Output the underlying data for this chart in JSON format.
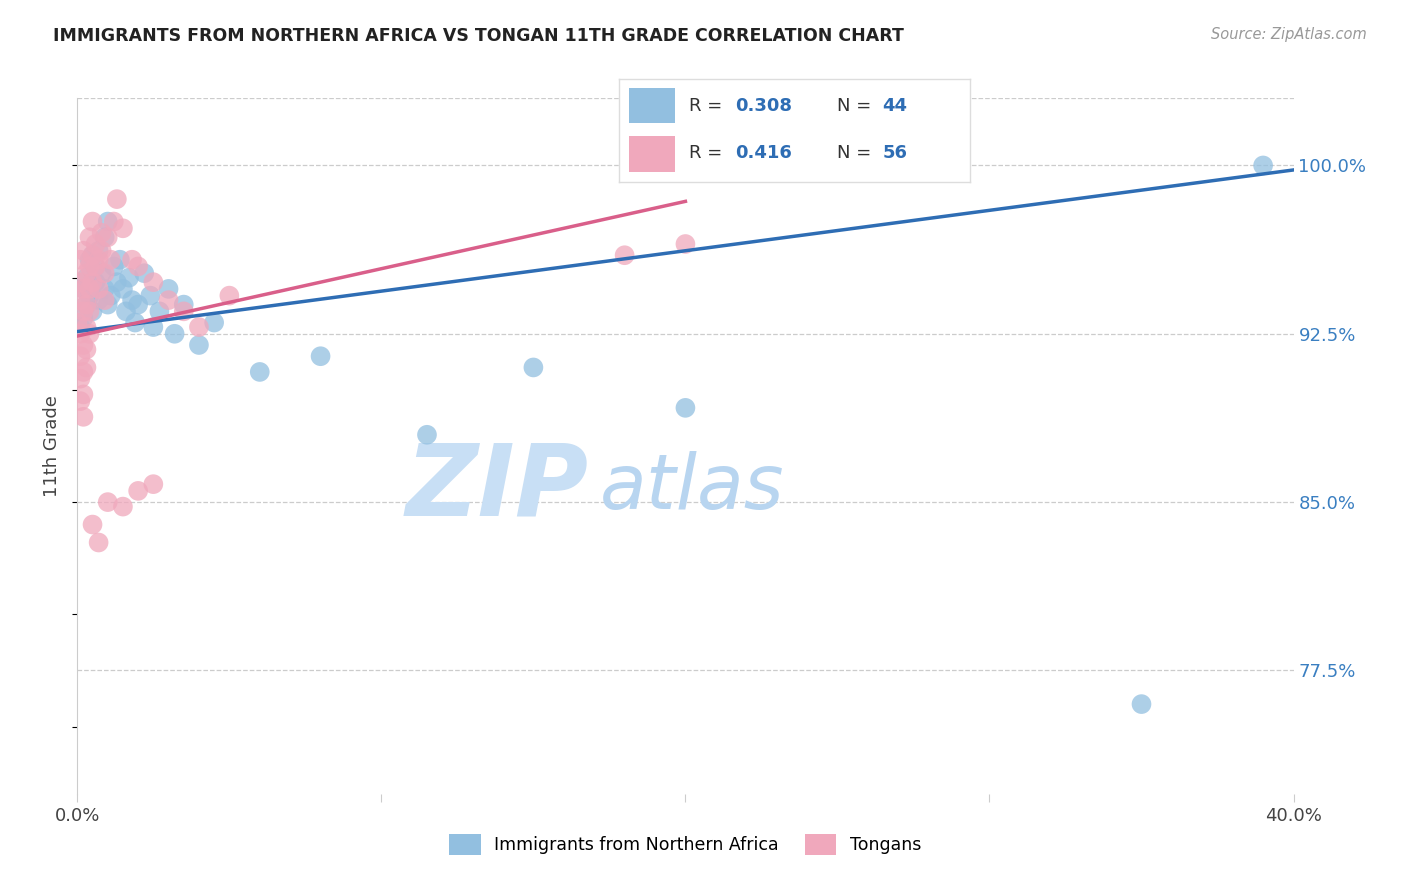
{
  "title": "IMMIGRANTS FROM NORTHERN AFRICA VS TONGAN 11TH GRADE CORRELATION CHART",
  "source": "Source: ZipAtlas.com",
  "ylabel": "11th Grade",
  "ytick_labels": [
    "77.5%",
    "85.0%",
    "92.5%",
    "100.0%"
  ],
  "ytick_values": [
    0.775,
    0.85,
    0.925,
    1.0
  ],
  "xlim": [
    0.0,
    0.4
  ],
  "ylim": [
    0.72,
    1.03
  ],
  "watermark_zip": "ZIP",
  "watermark_atlas": "atlas",
  "legend_label_blue": "Immigrants from Northern Africa",
  "legend_label_pink": "Tongans",
  "blue_color": "#92bfe0",
  "pink_color": "#f0a8bc",
  "blue_line_color": "#2e6db4",
  "pink_line_color": "#d95f8a",
  "legend_R_blue": "0.308",
  "legend_N_blue": "44",
  "legend_R_pink": "0.416",
  "legend_N_pink": "56",
  "blue_scatter": [
    [
      0.001,
      0.928
    ],
    [
      0.002,
      0.932
    ],
    [
      0.002,
      0.945
    ],
    [
      0.003,
      0.95
    ],
    [
      0.003,
      0.938
    ],
    [
      0.004,
      0.958
    ],
    [
      0.004,
      0.942
    ],
    [
      0.005,
      0.935
    ],
    [
      0.005,
      0.96
    ],
    [
      0.006,
      0.948
    ],
    [
      0.006,
      0.955
    ],
    [
      0.007,
      0.962
    ],
    [
      0.007,
      0.94
    ],
    [
      0.008,
      0.952
    ],
    [
      0.009,
      0.945
    ],
    [
      0.009,
      0.968
    ],
    [
      0.01,
      0.938
    ],
    [
      0.01,
      0.975
    ],
    [
      0.011,
      0.942
    ],
    [
      0.012,
      0.955
    ],
    [
      0.013,
      0.948
    ],
    [
      0.014,
      0.958
    ],
    [
      0.015,
      0.945
    ],
    [
      0.016,
      0.935
    ],
    [
      0.017,
      0.95
    ],
    [
      0.018,
      0.94
    ],
    [
      0.019,
      0.93
    ],
    [
      0.02,
      0.938
    ],
    [
      0.022,
      0.952
    ],
    [
      0.024,
      0.942
    ],
    [
      0.025,
      0.928
    ],
    [
      0.027,
      0.935
    ],
    [
      0.03,
      0.945
    ],
    [
      0.032,
      0.925
    ],
    [
      0.035,
      0.938
    ],
    [
      0.04,
      0.92
    ],
    [
      0.045,
      0.93
    ],
    [
      0.06,
      0.908
    ],
    [
      0.08,
      0.915
    ],
    [
      0.115,
      0.88
    ],
    [
      0.15,
      0.91
    ],
    [
      0.2,
      0.892
    ],
    [
      0.35,
      0.76
    ],
    [
      0.39,
      1.0
    ]
  ],
  "pink_scatter": [
    [
      0.0,
      0.93
    ],
    [
      0.001,
      0.94
    ],
    [
      0.001,
      0.958
    ],
    [
      0.001,
      0.948
    ],
    [
      0.001,
      0.925
    ],
    [
      0.001,
      0.915
    ],
    [
      0.001,
      0.905
    ],
    [
      0.001,
      0.895
    ],
    [
      0.002,
      0.945
    ],
    [
      0.002,
      0.962
    ],
    [
      0.002,
      0.935
    ],
    [
      0.002,
      0.92
    ],
    [
      0.002,
      0.908
    ],
    [
      0.002,
      0.898
    ],
    [
      0.002,
      0.888
    ],
    [
      0.003,
      0.952
    ],
    [
      0.003,
      0.938
    ],
    [
      0.003,
      0.928
    ],
    [
      0.003,
      0.918
    ],
    [
      0.003,
      0.91
    ],
    [
      0.004,
      0.968
    ],
    [
      0.004,
      0.955
    ],
    [
      0.004,
      0.945
    ],
    [
      0.004,
      0.935
    ],
    [
      0.004,
      0.925
    ],
    [
      0.005,
      0.975
    ],
    [
      0.005,
      0.96
    ],
    [
      0.005,
      0.948
    ],
    [
      0.006,
      0.965
    ],
    [
      0.006,
      0.955
    ],
    [
      0.007,
      0.958
    ],
    [
      0.007,
      0.945
    ],
    [
      0.008,
      0.962
    ],
    [
      0.008,
      0.97
    ],
    [
      0.009,
      0.952
    ],
    [
      0.009,
      0.94
    ],
    [
      0.01,
      0.968
    ],
    [
      0.011,
      0.958
    ],
    [
      0.012,
      0.975
    ],
    [
      0.013,
      0.985
    ],
    [
      0.015,
      0.972
    ],
    [
      0.018,
      0.958
    ],
    [
      0.02,
      0.955
    ],
    [
      0.025,
      0.948
    ],
    [
      0.03,
      0.94
    ],
    [
      0.035,
      0.935
    ],
    [
      0.04,
      0.928
    ],
    [
      0.05,
      0.942
    ],
    [
      0.005,
      0.84
    ],
    [
      0.007,
      0.832
    ],
    [
      0.01,
      0.85
    ],
    [
      0.015,
      0.848
    ],
    [
      0.02,
      0.855
    ],
    [
      0.025,
      0.858
    ],
    [
      0.18,
      0.96
    ],
    [
      0.2,
      0.965
    ]
  ],
  "trendline_blue": [
    [
      0.0,
      0.926
    ],
    [
      0.4,
      0.998
    ]
  ],
  "trendline_pink": [
    [
      0.0,
      0.924
    ],
    [
      0.2,
      0.984
    ]
  ]
}
